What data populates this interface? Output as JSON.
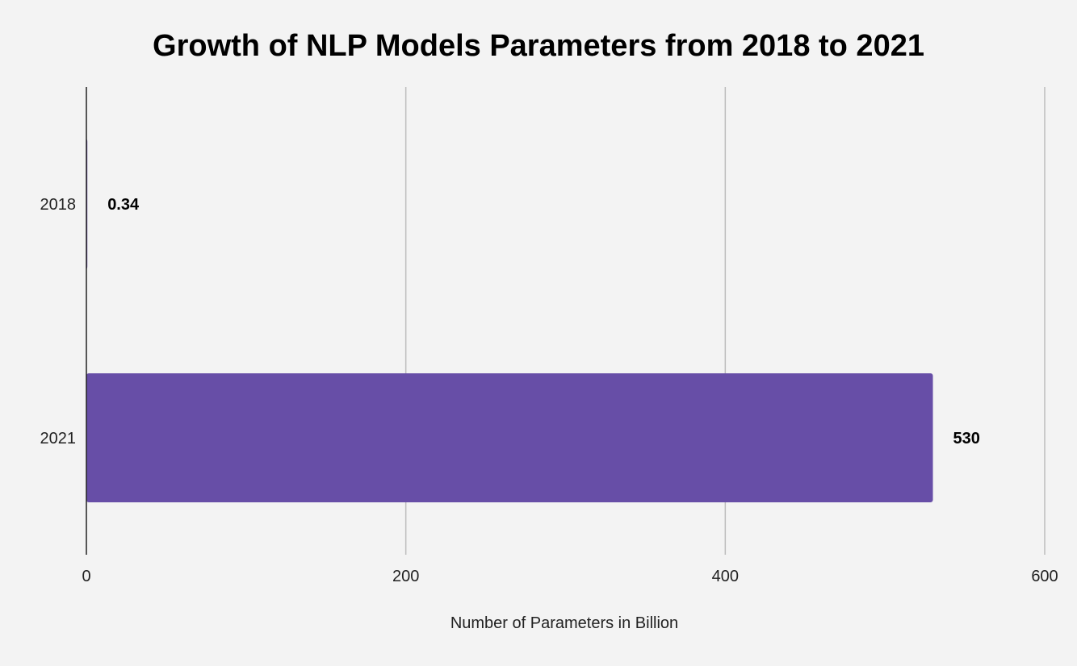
{
  "chart_data": {
    "type": "bar",
    "orientation": "horizontal",
    "title": "Growth of NLP Models Parameters from 2018 to 2021",
    "categories": [
      "2018",
      "2021"
    ],
    "values": [
      0.34,
      530
    ],
    "value_labels": [
      "0.34",
      "530"
    ],
    "xlabel": "Number of Parameters in Billion",
    "ylabel": "",
    "xlim": [
      0,
      600
    ],
    "xticks": [
      0,
      200,
      400,
      600
    ],
    "xtick_labels": [
      "0",
      "200",
      "400",
      "600"
    ],
    "grid": true,
    "bar_color": "#674ea7",
    "legend": "none"
  }
}
